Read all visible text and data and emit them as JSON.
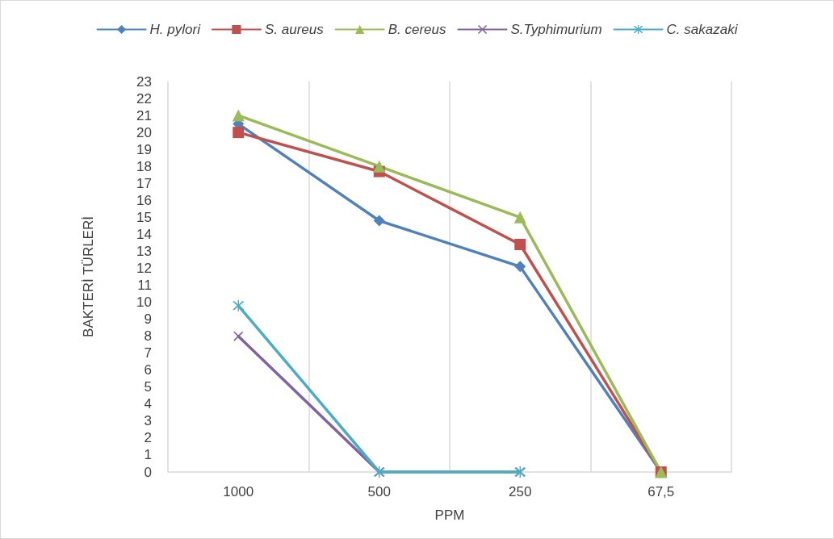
{
  "chart_data": {
    "type": "line",
    "xlabel": "PPM",
    "ylabel": "BAKTERİ TÜRLERİ",
    "categories": [
      "1000",
      "500",
      "250",
      "67,5"
    ],
    "series": [
      {
        "name": "H. pylori",
        "color": "#4f81bd",
        "marker": "diamond",
        "values": [
          20.5,
          14.8,
          12.1,
          0
        ]
      },
      {
        "name": "S. aureus",
        "color": "#c0504d",
        "marker": "square",
        "values": [
          20.0,
          17.7,
          13.4,
          0
        ]
      },
      {
        "name": "B. cereus",
        "color": "#9bbb59",
        "marker": "triangle",
        "values": [
          21.0,
          18.0,
          15.0,
          0
        ]
      },
      {
        "name": "S.Typhimurium",
        "color": "#8064a2",
        "marker": "cross",
        "values": [
          8.0,
          0,
          0,
          null
        ]
      },
      {
        "name": "C. sakazaki",
        "color": "#4bacc6",
        "marker": "star",
        "values": [
          9.8,
          0,
          0,
          null
        ]
      }
    ],
    "ylim": [
      0,
      23
    ],
    "yticks": [
      0,
      1,
      2,
      3,
      4,
      5,
      6,
      7,
      8,
      9,
      10,
      11,
      12,
      13,
      14,
      15,
      16,
      17,
      18,
      19,
      20,
      21,
      22,
      23
    ],
    "grid": "x",
    "legend": "top",
    "line_style": "solid"
  }
}
